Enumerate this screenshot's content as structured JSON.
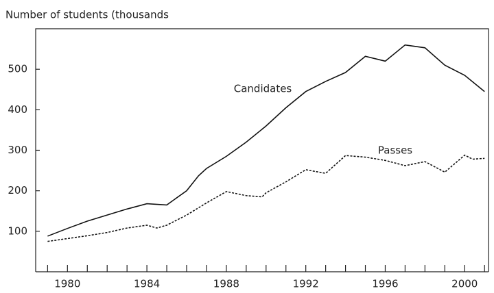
{
  "chart_data": {
    "type": "line",
    "title": "Number of students (thousands",
    "xlim": [
      1978.4,
      2001.2
    ],
    "ylim": [
      0,
      600
    ],
    "xticks": [
      1980,
      1984,
      1988,
      1992,
      1996,
      2000
    ],
    "minor_xticks": [
      1979,
      1980,
      1981,
      1982,
      1983,
      1984,
      1985,
      1986,
      1987,
      1988,
      1989,
      1990,
      1991,
      1992,
      1993,
      1994,
      1995,
      1996,
      1997,
      1998,
      1999,
      2000,
      2001
    ],
    "yticks": [
      100,
      200,
      300,
      400,
      500
    ],
    "series": [
      {
        "name": "Candidates",
        "color": "#111111",
        "dash": "solid",
        "x": [
          1979,
          1980,
          1981,
          1982,
          1983,
          1984,
          1985,
          1986,
          1986.6,
          1987,
          1988,
          1989,
          1990,
          1991,
          1992,
          1993,
          1994,
          1995,
          1996,
          1997,
          1998,
          1999,
          2000,
          2001
        ],
        "values": [
          88,
          107,
          125,
          140,
          155,
          168,
          165,
          200,
          237,
          255,
          285,
          320,
          360,
          405,
          445,
          470,
          492,
          532,
          520,
          560,
          553,
          510,
          485,
          445
        ]
      },
      {
        "name": "Passes",
        "color": "#111111",
        "dash": "dotted",
        "x": [
          1979,
          1980,
          1981,
          1982,
          1983,
          1984,
          1984.5,
          1985,
          1986,
          1987,
          1988,
          1989,
          1989.8,
          1990,
          1991,
          1992,
          1993,
          1994,
          1995,
          1996,
          1997,
          1998,
          1999,
          2000,
          2000.4,
          2001
        ],
        "values": [
          75,
          82,
          89,
          97,
          108,
          115,
          108,
          115,
          140,
          170,
          198,
          188,
          185,
          195,
          222,
          252,
          243,
          287,
          283,
          275,
          262,
          272,
          246,
          288,
          278,
          280
        ]
      }
    ]
  }
}
